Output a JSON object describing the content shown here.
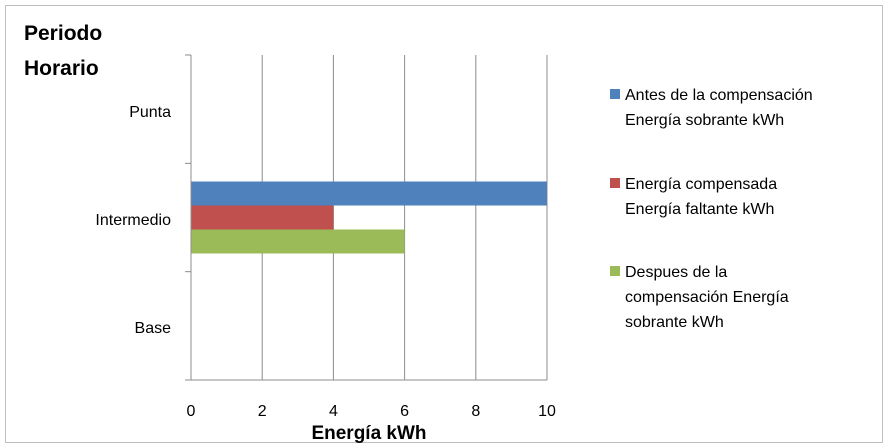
{
  "chart_data": {
    "type": "bar",
    "orientation": "horizontal",
    "title_lines": [
      "Periodo",
      "Horario"
    ],
    "xlabel": "Energía kWh",
    "categories": [
      "Punta",
      "Intermedio",
      "Base"
    ],
    "xlim": [
      0,
      10
    ],
    "xticks": [
      "0",
      "2",
      "4",
      "6",
      "8",
      "10"
    ],
    "grid": true,
    "legend_position": "right",
    "series": [
      {
        "name": "Antes de la compensación Energía sobrante kWh",
        "name_lines": [
          "Antes de la compensación",
          "Energía sobrante kWh"
        ],
        "color": "#4f81bd",
        "values": [
          0,
          10,
          0
        ]
      },
      {
        "name": "Energía compensada Energía faltante kWh",
        "name_lines": [
          "Energía compensada",
          "Energía faltante kWh"
        ],
        "color": "#c0504d",
        "values": [
          0,
          4,
          0
        ]
      },
      {
        "name": "Despues de la compensación Energía sobrante kWh",
        "name_lines": [
          "Despues de la",
          "compensación Energía",
          "sobrante kWh"
        ],
        "color": "#9bbb59",
        "values": [
          0,
          6,
          0
        ]
      }
    ]
  }
}
